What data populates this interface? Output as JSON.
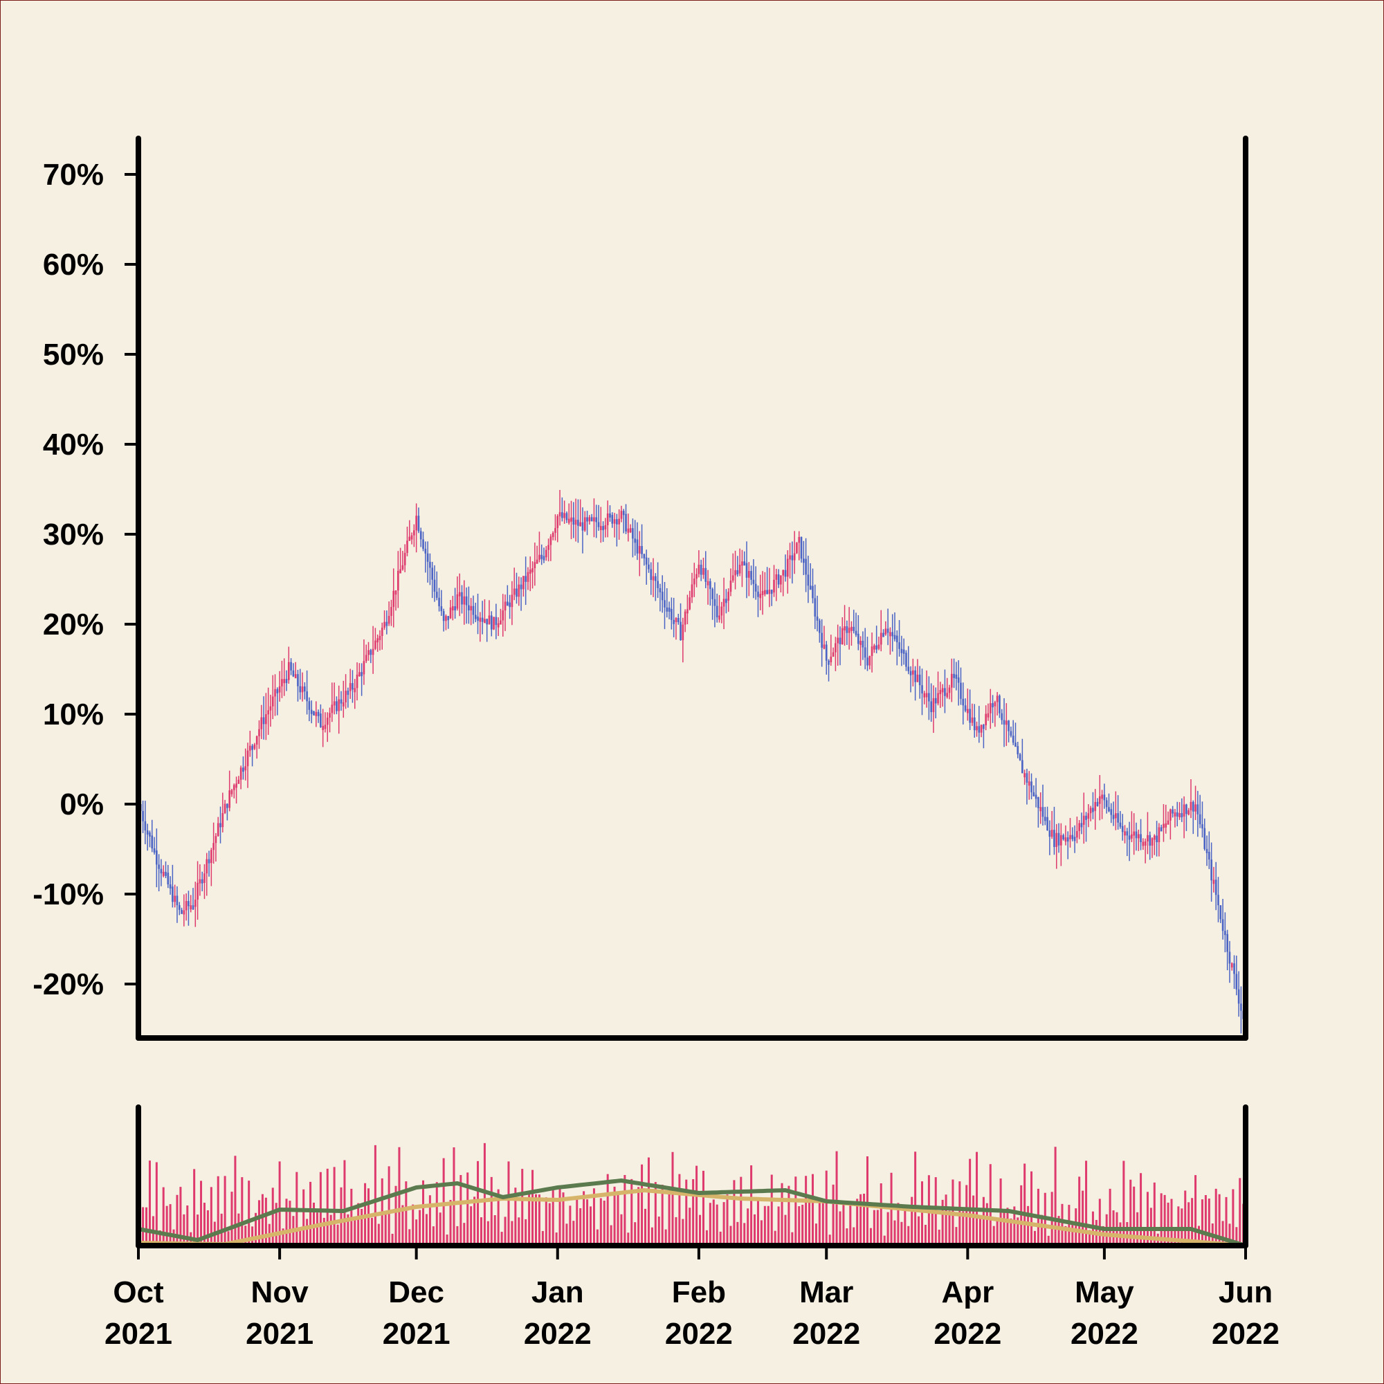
{
  "chart_data": [
    {
      "type": "candlestick",
      "title": "",
      "xlabel": "",
      "ylabel": "",
      "ylim": [
        -26,
        74
      ],
      "y_ticks": [
        70,
        60,
        50,
        40,
        30,
        20,
        10,
        0,
        -10,
        -20
      ],
      "y_tick_labels": [
        "70%",
        "60%",
        "50%",
        "40%",
        "30%",
        "20%",
        "10%",
        "0%",
        "-10%",
        "-20%"
      ],
      "xlim": [
        "2021-10-01",
        "2022-06-01"
      ],
      "x_ticks": [
        "2021-10-01",
        "2021-11-01",
        "2021-12-01",
        "2022-01-01",
        "2022-02-01",
        "2022-03-01",
        "2022-04-01",
        "2022-05-01",
        "2022-06-01"
      ],
      "x_tick_labels_month": [
        "Oct",
        "Nov",
        "Dec",
        "Jan",
        "Feb",
        "Mar",
        "Apr",
        "May",
        "Jun"
      ],
      "x_tick_labels_year": [
        "2021",
        "2021",
        "2021",
        "2022",
        "2022",
        "2022",
        "2022",
        "2022",
        "2022"
      ],
      "colors": {
        "up": "#de3a6e",
        "down": "#4a63c4"
      },
      "close_path_points": [
        {
          "x": "2021-10-01",
          "y": 0
        },
        {
          "x": "2021-10-05",
          "y": -6
        },
        {
          "x": "2021-10-10",
          "y": -12
        },
        {
          "x": "2021-10-13",
          "y": -11
        },
        {
          "x": "2021-10-21",
          "y": 1
        },
        {
          "x": "2021-10-28",
          "y": 9
        },
        {
          "x": "2021-11-03",
          "y": 15
        },
        {
          "x": "2021-11-10",
          "y": 9
        },
        {
          "x": "2021-11-17",
          "y": 13
        },
        {
          "x": "2021-11-24",
          "y": 20
        },
        {
          "x": "2021-12-01",
          "y": 32
        },
        {
          "x": "2021-12-07",
          "y": 20
        },
        {
          "x": "2021-12-10",
          "y": 23
        },
        {
          "x": "2021-12-18",
          "y": 20
        },
        {
          "x": "2021-12-25",
          "y": 25
        },
        {
          "x": "2021-12-29",
          "y": 28
        },
        {
          "x": "2022-01-01",
          "y": 32
        },
        {
          "x": "2022-01-06",
          "y": 31
        },
        {
          "x": "2022-01-15",
          "y": 32
        },
        {
          "x": "2022-01-22",
          "y": 25
        },
        {
          "x": "2022-01-28",
          "y": 19
        },
        {
          "x": "2022-02-01",
          "y": 27
        },
        {
          "x": "2022-02-05",
          "y": 21
        },
        {
          "x": "2022-02-10",
          "y": 27
        },
        {
          "x": "2022-02-15",
          "y": 23
        },
        {
          "x": "2022-02-20",
          "y": 26
        },
        {
          "x": "2022-02-23",
          "y": 29
        },
        {
          "x": "2022-03-01",
          "y": 16
        },
        {
          "x": "2022-03-06",
          "y": 20
        },
        {
          "x": "2022-03-10",
          "y": 16
        },
        {
          "x": "2022-03-14",
          "y": 20
        },
        {
          "x": "2022-03-24",
          "y": 11
        },
        {
          "x": "2022-03-29",
          "y": 14
        },
        {
          "x": "2022-04-03",
          "y": 8
        },
        {
          "x": "2022-04-07",
          "y": 12
        },
        {
          "x": "2022-04-12",
          "y": 5
        },
        {
          "x": "2022-04-20",
          "y": -4
        },
        {
          "x": "2022-04-25",
          "y": -3
        },
        {
          "x": "2022-04-30",
          "y": 1
        },
        {
          "x": "2022-05-05",
          "y": -3
        },
        {
          "x": "2022-05-12",
          "y": -4
        },
        {
          "x": "2022-05-16",
          "y": -1
        },
        {
          "x": "2022-05-21",
          "y": 0
        },
        {
          "x": "2022-05-25",
          "y": -9
        },
        {
          "x": "2022-06-01",
          "y": -25
        }
      ],
      "volume": {
        "colors": {
          "bars": "#de3a6e",
          "ma_fast": "#5b7a4e",
          "ma_slow": "#d6b56a"
        },
        "ma_fast_points": [
          {
            "x": "2021-10-01",
            "y": 0.12
          },
          {
            "x": "2021-10-14",
            "y": 0.04
          },
          {
            "x": "2021-11-01",
            "y": 0.26
          },
          {
            "x": "2021-11-15",
            "y": 0.25
          },
          {
            "x": "2021-12-01",
            "y": 0.42
          },
          {
            "x": "2021-12-10",
            "y": 0.45
          },
          {
            "x": "2021-12-20",
            "y": 0.35
          },
          {
            "x": "2022-01-01",
            "y": 0.42
          },
          {
            "x": "2022-01-15",
            "y": 0.47
          },
          {
            "x": "2022-02-01",
            "y": 0.38
          },
          {
            "x": "2022-02-20",
            "y": 0.4
          },
          {
            "x": "2022-03-01",
            "y": 0.32
          },
          {
            "x": "2022-03-20",
            "y": 0.28
          },
          {
            "x": "2022-04-10",
            "y": 0.25
          },
          {
            "x": "2022-05-01",
            "y": 0.12
          },
          {
            "x": "2022-05-20",
            "y": 0.12
          },
          {
            "x": "2022-06-01",
            "y": 0.0
          }
        ],
        "ma_slow_points": [
          {
            "x": "2021-10-01",
            "y": 0.02
          },
          {
            "x": "2021-10-20",
            "y": 0.01
          },
          {
            "x": "2021-11-10",
            "y": 0.15
          },
          {
            "x": "2021-12-01",
            "y": 0.28
          },
          {
            "x": "2021-12-20",
            "y": 0.34
          },
          {
            "x": "2022-01-01",
            "y": 0.33
          },
          {
            "x": "2022-01-20",
            "y": 0.4
          },
          {
            "x": "2022-02-10",
            "y": 0.34
          },
          {
            "x": "2022-03-01",
            "y": 0.32
          },
          {
            "x": "2022-04-01",
            "y": 0.22
          },
          {
            "x": "2022-05-01",
            "y": 0.08
          },
          {
            "x": "2022-06-01",
            "y": 0.0
          }
        ],
        "seed_amplitudes": [
          0.35,
          0.6,
          0.85,
          0.5,
          0.95,
          0.3,
          0.7,
          0.45,
          0.8,
          0.2,
          0.55,
          0.9,
          0.4,
          0.65,
          0.25,
          0.75
        ]
      }
    }
  ]
}
